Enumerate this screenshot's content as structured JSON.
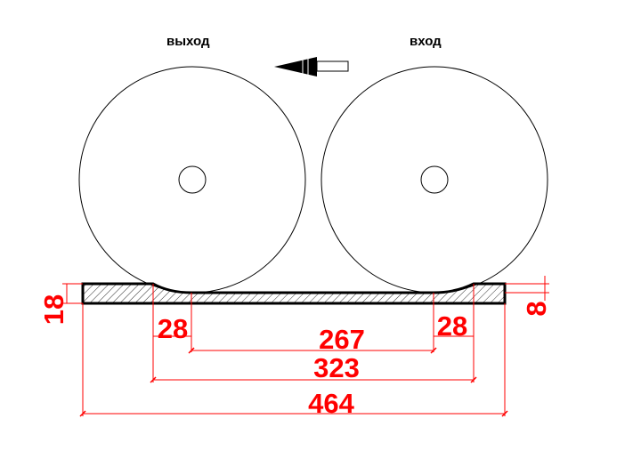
{
  "labels": {
    "exit": "выход",
    "entry": "вход"
  },
  "dimensions": {
    "thickness_total": "18",
    "thickness_final": "8",
    "transition_left": "28",
    "transition_right": "28",
    "flat_length": "267",
    "working_length": "323",
    "total_length": "464"
  },
  "colors": {
    "dimension": "#ff0000",
    "drawing": "#000000"
  },
  "icons": {
    "direction": "arrow-left-icon"
  }
}
